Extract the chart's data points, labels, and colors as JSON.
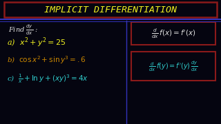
{
  "bg_color": "#050510",
  "title_box_color": "#8b1a1a",
  "title_text_color": "#f0f020",
  "separator_color": "#3333bb",
  "white_color": "#e0e0e0",
  "yellow_color": "#f0f020",
  "orange_color": "#cc8800",
  "cyan_color": "#30cccc",
  "box_color": "#8b1a1a",
  "title_text": "Implicit Differentiation"
}
